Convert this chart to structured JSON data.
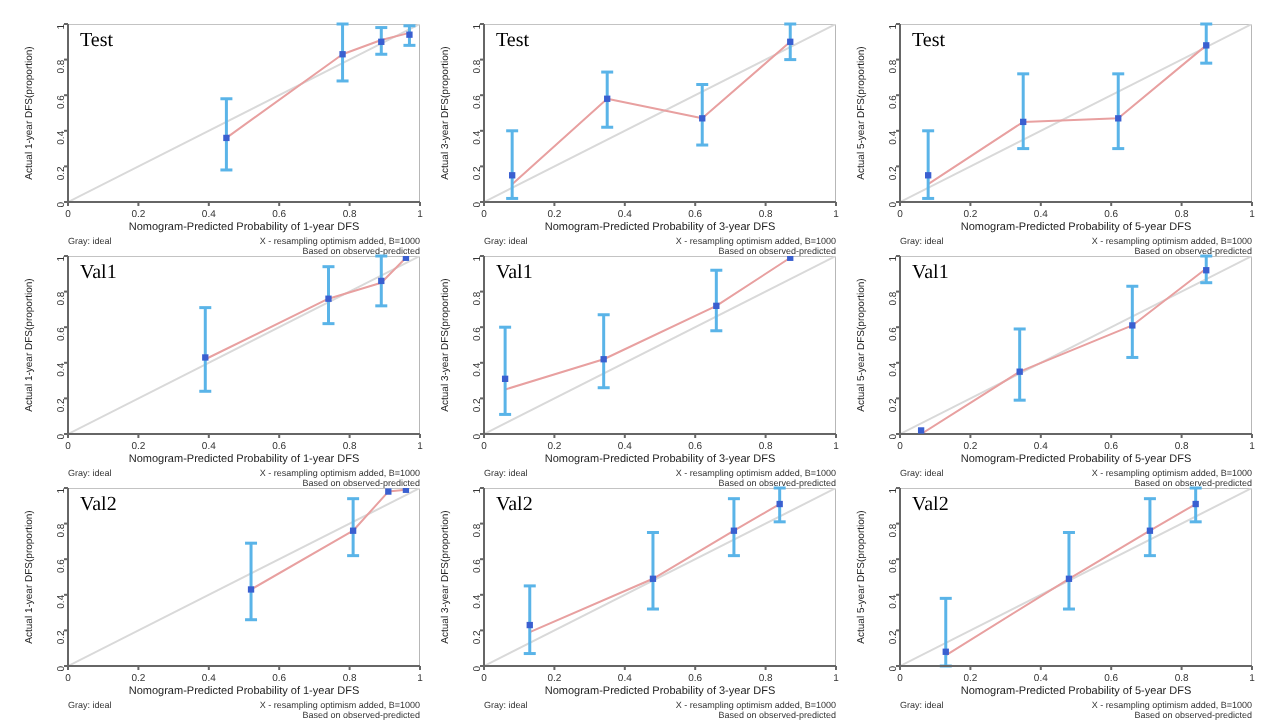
{
  "chart_data": [
    {
      "type": "line",
      "title": "Test",
      "xlabel": "Nomogram-Predicted Probability of 1-year DFS",
      "ylabel": "Actual 1-year DFS(proportion)",
      "xlim": [
        0,
        1
      ],
      "ylim": [
        0,
        1
      ],
      "xticks": [
        0,
        0.2,
        0.4,
        0.6,
        0.8,
        1
      ],
      "yticks": [
        0,
        0.2,
        0.4,
        0.6,
        0.8,
        1
      ],
      "annotations": [
        "Gray: ideal",
        "X - resampling optimism added, B=1000",
        "Based on observed-predicted"
      ],
      "series": [
        {
          "type": "line",
          "color": "#d9d9d9",
          "x": [
            0,
            1
          ],
          "values": [
            0,
            1
          ]
        },
        {
          "type": "line",
          "color": "#e8a0a0",
          "x": [
            0.45,
            0.78,
            0.89,
            0.97
          ],
          "values": [
            0.36,
            0.83,
            0.91,
            0.95
          ]
        },
        {
          "type": "scatter",
          "color": "#3a5fd0",
          "marker": "square",
          "x": [
            0.45,
            0.78,
            0.89,
            0.97
          ],
          "values": [
            0.36,
            0.83,
            0.9,
            0.94
          ],
          "errors": [
            [
              0.18,
              0.58
            ],
            [
              0.68,
              1.0
            ],
            [
              0.83,
              0.98
            ],
            [
              0.88,
              0.99
            ]
          ]
        }
      ]
    },
    {
      "type": "line",
      "title": "Test",
      "xlabel": "Nomogram-Predicted Probability of 3-year DFS",
      "ylabel": "Actual 3-year DFS(proportion)",
      "xlim": [
        0,
        1
      ],
      "ylim": [
        0,
        1
      ],
      "xticks": [
        0,
        0.2,
        0.4,
        0.6,
        0.8,
        1
      ],
      "yticks": [
        0,
        0.2,
        0.4,
        0.6,
        0.8,
        1
      ],
      "annotations": [
        "Gray: ideal",
        "X - resampling optimism added, B=1000",
        "Based on observed-predicted"
      ],
      "series": [
        {
          "type": "line",
          "color": "#d9d9d9",
          "x": [
            0,
            1
          ],
          "values": [
            0,
            1
          ]
        },
        {
          "type": "line",
          "color": "#e8a0a0",
          "x": [
            0.08,
            0.35,
            0.62,
            0.87
          ],
          "values": [
            0.1,
            0.58,
            0.47,
            0.9
          ]
        },
        {
          "type": "scatter",
          "color": "#3a5fd0",
          "marker": "square",
          "x": [
            0.08,
            0.35,
            0.62,
            0.87
          ],
          "values": [
            0.15,
            0.58,
            0.47,
            0.9
          ],
          "errors": [
            [
              0.02,
              0.4
            ],
            [
              0.42,
              0.73
            ],
            [
              0.32,
              0.66
            ],
            [
              0.8,
              1.0
            ]
          ]
        }
      ]
    },
    {
      "type": "line",
      "title": "Test",
      "xlabel": "Nomogram-Predicted Probability of 5-year DFS",
      "ylabel": "Actual 5-year DFS(proportion)",
      "xlim": [
        0,
        1
      ],
      "ylim": [
        0,
        1
      ],
      "xticks": [
        0,
        0.2,
        0.4,
        0.6,
        0.8,
        1
      ],
      "yticks": [
        0,
        0.2,
        0.4,
        0.6,
        0.8,
        1
      ],
      "annotations": [
        "Gray: ideal",
        "X - resampling optimism added, B=1000",
        "Based on observed-predicted"
      ],
      "series": [
        {
          "type": "line",
          "color": "#d9d9d9",
          "x": [
            0,
            1
          ],
          "values": [
            0,
            1
          ]
        },
        {
          "type": "line",
          "color": "#e8a0a0",
          "x": [
            0.08,
            0.35,
            0.62,
            0.87
          ],
          "values": [
            0.1,
            0.45,
            0.47,
            0.88
          ]
        },
        {
          "type": "scatter",
          "color": "#3a5fd0",
          "marker": "square",
          "x": [
            0.08,
            0.35,
            0.62,
            0.87
          ],
          "values": [
            0.15,
            0.45,
            0.47,
            0.88
          ],
          "errors": [
            [
              0.02,
              0.4
            ],
            [
              0.3,
              0.72
            ],
            [
              0.3,
              0.72
            ],
            [
              0.78,
              1.0
            ]
          ]
        }
      ]
    },
    {
      "type": "line",
      "title": "Val1",
      "xlabel": "Nomogram-Predicted Probability of 1-year DFS",
      "ylabel": "Actual 1-year DFS(proportion)",
      "xlim": [
        0,
        1
      ],
      "ylim": [
        0,
        1
      ],
      "xticks": [
        0,
        0.2,
        0.4,
        0.6,
        0.8,
        1
      ],
      "yticks": [
        0,
        0.2,
        0.4,
        0.6,
        0.8,
        1
      ],
      "annotations": [
        "Gray: ideal",
        "X - resampling optimism added, B=1000",
        "Based on observed-predicted"
      ],
      "series": [
        {
          "type": "line",
          "color": "#d9d9d9",
          "x": [
            0,
            1
          ],
          "values": [
            0,
            1
          ]
        },
        {
          "type": "line",
          "color": "#e8a0a0",
          "x": [
            0.39,
            0.74,
            0.89,
            0.96
          ],
          "values": [
            0.42,
            0.76,
            0.85,
            0.99
          ]
        },
        {
          "type": "scatter",
          "color": "#3a5fd0",
          "marker": "square",
          "x": [
            0.39,
            0.74,
            0.89,
            0.96
          ],
          "values": [
            0.43,
            0.76,
            0.86,
            0.99
          ],
          "errors": [
            [
              0.24,
              0.71
            ],
            [
              0.62,
              0.94
            ],
            [
              0.72,
              1.0
            ],
            null
          ]
        }
      ]
    },
    {
      "type": "line",
      "title": "Val1",
      "xlabel": "Nomogram-Predicted Probability of 3-year DFS",
      "ylabel": "Actual 3-year DFS(proportion)",
      "xlim": [
        0,
        1
      ],
      "ylim": [
        0,
        1
      ],
      "xticks": [
        0,
        0.2,
        0.4,
        0.6,
        0.8,
        1
      ],
      "yticks": [
        0,
        0.2,
        0.4,
        0.6,
        0.8,
        1
      ],
      "annotations": [
        "Gray: ideal",
        "X - resampling optimism added, B=1000",
        "Based on observed-predicted"
      ],
      "series": [
        {
          "type": "line",
          "color": "#d9d9d9",
          "x": [
            0,
            1
          ],
          "values": [
            0,
            1
          ]
        },
        {
          "type": "line",
          "color": "#e8a0a0",
          "x": [
            0.06,
            0.34,
            0.66,
            0.87
          ],
          "values": [
            0.25,
            0.42,
            0.72,
            0.99
          ]
        },
        {
          "type": "scatter",
          "color": "#3a5fd0",
          "marker": "square",
          "x": [
            0.06,
            0.34,
            0.66,
            0.87
          ],
          "values": [
            0.31,
            0.42,
            0.72,
            0.99
          ],
          "errors": [
            [
              0.11,
              0.6
            ],
            [
              0.26,
              0.67
            ],
            [
              0.58,
              0.92
            ],
            null
          ]
        }
      ]
    },
    {
      "type": "line",
      "title": "Val1",
      "xlabel": "Nomogram-Predicted Probability of 5-year DFS",
      "ylabel": "Actual 5-year DFS(proportion)",
      "xlim": [
        0,
        1
      ],
      "ylim": [
        0,
        1
      ],
      "xticks": [
        0,
        0.2,
        0.4,
        0.6,
        0.8,
        1
      ],
      "yticks": [
        0,
        0.2,
        0.4,
        0.6,
        0.8,
        1
      ],
      "annotations": [
        "Gray: ideal",
        "X - resampling optimism added, B=1000",
        "Based on observed-predicted"
      ],
      "series": [
        {
          "type": "line",
          "color": "#d9d9d9",
          "x": [
            0,
            1
          ],
          "values": [
            0,
            1
          ]
        },
        {
          "type": "line",
          "color": "#e8a0a0",
          "x": [
            0.06,
            0.34,
            0.66,
            0.87
          ],
          "values": [
            0.0,
            0.35,
            0.61,
            0.93
          ]
        },
        {
          "type": "scatter",
          "color": "#3a5fd0",
          "marker": "square",
          "x": [
            0.06,
            0.34,
            0.66,
            0.87
          ],
          "values": [
            0.02,
            0.35,
            0.61,
            0.92
          ],
          "errors": [
            null,
            [
              0.19,
              0.59
            ],
            [
              0.43,
              0.83
            ],
            [
              0.85,
              1.0
            ]
          ]
        }
      ]
    },
    {
      "type": "line",
      "title": "Val2",
      "xlabel": "Nomogram-Predicted Probability of 1-year DFS",
      "ylabel": "Actual 1-year DFS(proportion)",
      "xlim": [
        0,
        1
      ],
      "ylim": [
        0,
        1
      ],
      "xticks": [
        0,
        0.2,
        0.4,
        0.6,
        0.8,
        1
      ],
      "yticks": [
        0,
        0.2,
        0.4,
        0.6,
        0.8,
        1
      ],
      "annotations": [
        "Gray: ideal",
        "X - resampling optimism added, B=1000",
        "Based on observed-predicted"
      ],
      "series": [
        {
          "type": "line",
          "color": "#d9d9d9",
          "x": [
            0,
            1
          ],
          "values": [
            0,
            1
          ]
        },
        {
          "type": "line",
          "color": "#e8a0a0",
          "x": [
            0.52,
            0.81,
            0.91,
            0.96
          ],
          "values": [
            0.43,
            0.76,
            0.98,
            0.99
          ]
        },
        {
          "type": "scatter",
          "color": "#3a5fd0",
          "marker": "square",
          "x": [
            0.52,
            0.81,
            0.91,
            0.96
          ],
          "values": [
            0.43,
            0.76,
            0.98,
            0.99
          ],
          "errors": [
            [
              0.26,
              0.69
            ],
            [
              0.62,
              0.94
            ],
            null,
            null
          ]
        }
      ]
    },
    {
      "type": "line",
      "title": "Val2",
      "xlabel": "Nomogram-Predicted Probability of 3-year DFS",
      "ylabel": "Actual 3-year DFS(proportion)",
      "xlim": [
        0,
        1
      ],
      "ylim": [
        0,
        1
      ],
      "xticks": [
        0,
        0.2,
        0.4,
        0.6,
        0.8,
        1
      ],
      "yticks": [
        0,
        0.2,
        0.4,
        0.6,
        0.8,
        1
      ],
      "annotations": [
        "Gray: ideal",
        "X - resampling optimism added, B=1000",
        "Based on observed-predicted"
      ],
      "series": [
        {
          "type": "line",
          "color": "#d9d9d9",
          "x": [
            0,
            1
          ],
          "values": [
            0,
            1
          ]
        },
        {
          "type": "line",
          "color": "#e8a0a0",
          "x": [
            0.13,
            0.48,
            0.71,
            0.84
          ],
          "values": [
            0.19,
            0.49,
            0.76,
            0.91
          ]
        },
        {
          "type": "scatter",
          "color": "#3a5fd0",
          "marker": "square",
          "x": [
            0.13,
            0.48,
            0.71,
            0.84
          ],
          "values": [
            0.23,
            0.49,
            0.76,
            0.91
          ],
          "errors": [
            [
              0.07,
              0.45
            ],
            [
              0.32,
              0.75
            ],
            [
              0.62,
              0.94
            ],
            [
              0.81,
              1.0
            ]
          ]
        }
      ]
    },
    {
      "type": "line",
      "title": "Val2",
      "xlabel": "Nomogram-Predicted Probability of 5-year DFS",
      "ylabel": "Actual 5-year DFS(proportion)",
      "xlim": [
        0,
        1
      ],
      "ylim": [
        0,
        1
      ],
      "xticks": [
        0,
        0.2,
        0.4,
        0.6,
        0.8,
        1
      ],
      "yticks": [
        0,
        0.2,
        0.4,
        0.6,
        0.8,
        1
      ],
      "annotations": [
        "Gray: ideal",
        "X - resampling optimism added, B=1000",
        "Based on observed-predicted"
      ],
      "series": [
        {
          "type": "line",
          "color": "#d9d9d9",
          "x": [
            0,
            1
          ],
          "values": [
            0,
            1
          ]
        },
        {
          "type": "line",
          "color": "#e8a0a0",
          "x": [
            0.13,
            0.48,
            0.71,
            0.84
          ],
          "values": [
            0.06,
            0.49,
            0.76,
            0.91
          ]
        },
        {
          "type": "scatter",
          "color": "#3a5fd0",
          "marker": "square",
          "x": [
            0.13,
            0.48,
            0.71,
            0.84
          ],
          "values": [
            0.08,
            0.49,
            0.76,
            0.91
          ],
          "errors": [
            [
              0.0,
              0.38
            ],
            [
              0.32,
              0.75
            ],
            [
              0.62,
              0.94
            ],
            [
              0.81,
              1.0
            ]
          ]
        }
      ]
    }
  ]
}
